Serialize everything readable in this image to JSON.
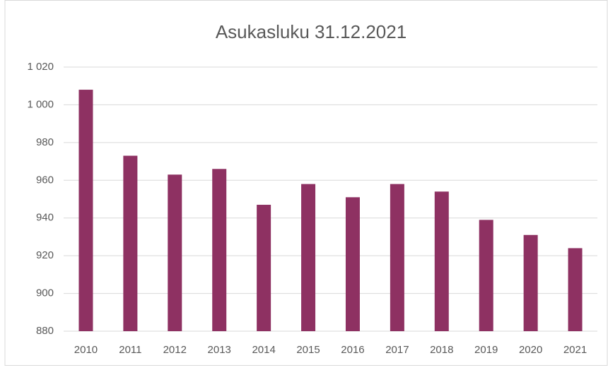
{
  "chart_data": {
    "type": "bar",
    "title": "Asukasluku 31.12.2021",
    "categories": [
      "2010",
      "2011",
      "2012",
      "2013",
      "2014",
      "2015",
      "2016",
      "2017",
      "2018",
      "2019",
      "2020",
      "2021"
    ],
    "values": [
      1008,
      973,
      963,
      966,
      947,
      958,
      951,
      958,
      954,
      939,
      931,
      924
    ],
    "color": "#8e3162",
    "ylim": [
      880,
      1020
    ],
    "yticks": [
      880,
      900,
      920,
      940,
      960,
      980,
      {
        "value": 1000,
        "label": "1 000"
      },
      {
        "value": 1020,
        "label": "1 020"
      }
    ],
    "grid": true
  }
}
